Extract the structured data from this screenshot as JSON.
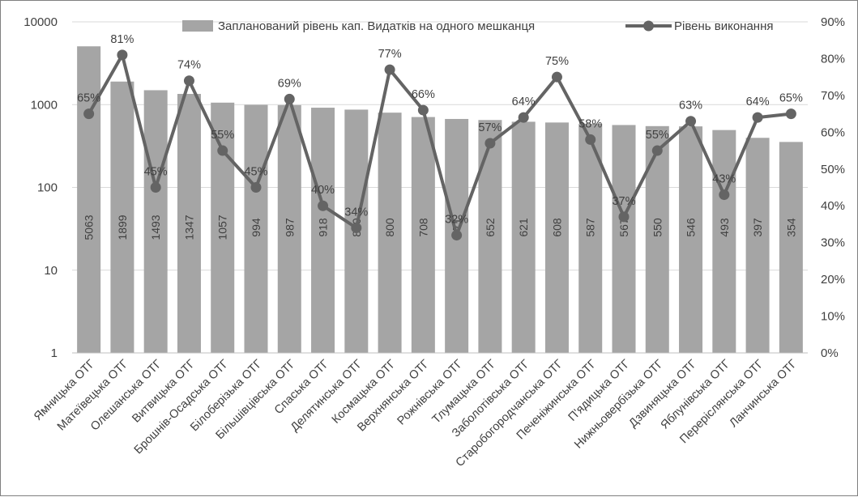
{
  "chart_data": {
    "type": "bar",
    "categories": [
      "Ямницька ОТГ",
      "Матеївецька ОТГ",
      "Олешанська ОТГ",
      "Витвицька ОТГ",
      "Брошнів-Осадська ОТГ",
      "Білоберізька ОТГ",
      "Більшівцівська ОТГ",
      "Спаська ОТГ",
      "Делятинська ОТГ",
      "Космацька ОТГ",
      "Верхнянська ОТГ",
      "Рожнівська ОТГ",
      "Тлумацька ОТГ",
      "Заболотівська ОТГ",
      "Старобогородчанська ОТГ",
      "Печеніжинська ОТГ",
      "П'ядицька ОТГ",
      "Нижньовербізька ОТГ",
      "Дзвиняцька ОТГ",
      "Яблунівська ОТГ",
      "Переріслянська ОТГ",
      "Ланчинська ОТГ"
    ],
    "series": [
      {
        "name": "Запланований рівень кап. Видатків на одного мешканця",
        "type": "bar",
        "axis": "left",
        "color": "#a5a5a5",
        "values": [
          5063,
          1899,
          1493,
          1347,
          1057,
          994,
          987,
          918,
          870,
          800,
          708,
          671,
          652,
          621,
          608,
          587,
          567,
          550,
          546,
          493,
          397,
          354
        ],
        "labels": [
          "5063",
          "1899",
          "1493",
          "1347",
          "1057",
          "994",
          "987",
          "918",
          "870",
          "800",
          "708",
          "671",
          "652",
          "621",
          "608",
          "587",
          "567",
          "550",
          "546",
          "493",
          "397",
          "354"
        ]
      },
      {
        "name": "Рівень виконання",
        "type": "line",
        "axis": "right",
        "color": "#646464",
        "values": [
          65,
          81,
          45,
          74,
          55,
          45,
          69,
          40,
          34,
          77,
          66,
          32,
          57,
          64,
          75,
          58,
          37,
          55,
          63,
          43,
          64,
          65
        ],
        "labels": [
          "65%",
          "81%",
          "45%",
          "74%",
          "55%",
          "45%",
          "69%",
          "40%",
          "34%",
          "77%",
          "66%",
          "32%",
          "57%",
          "64%",
          "75%",
          "58%",
          "37%",
          "55%",
          "63%",
          "43%",
          "64%",
          "65%"
        ]
      }
    ],
    "y_left": {
      "scale": "log",
      "ylim": [
        1,
        10000
      ],
      "ticks": [
        "1",
        "10",
        "100",
        "1000",
        "10000"
      ]
    },
    "y_right": {
      "scale": "linear",
      "ylim": [
        0,
        90
      ],
      "ticks": [
        "0%",
        "10%",
        "20%",
        "30%",
        "40%",
        "50%",
        "60%",
        "70%",
        "80%",
        "90%"
      ]
    },
    "grid": true,
    "legend_position": "top"
  }
}
